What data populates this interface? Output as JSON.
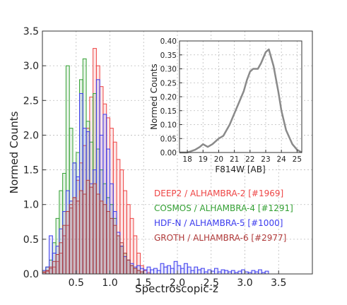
{
  "chart_data": [
    {
      "type": "histogram",
      "xlabel": "Spectroscopic-z",
      "ylabel": "Normed Counts",
      "xlim": [
        0.0,
        4.0
      ],
      "ylim": [
        0.0,
        3.5
      ],
      "xticks": [
        "0.5",
        "1.0",
        "1.5",
        "2.0",
        "2.5",
        "3.0",
        "3.5"
      ],
      "yticks": [
        "0.0",
        "0.5",
        "1.0",
        "1.5",
        "2.0",
        "2.5",
        "3.0",
        "3.5"
      ],
      "grid": true,
      "legend_placement": "lower-right",
      "series": [
        {
          "name": "DEEP2 / ALHAMBRA-2 [#1969]",
          "color": "#ee4444",
          "bins": [
            [
              0.0,
              0.02
            ],
            [
              0.05,
              0.04
            ],
            [
              0.1,
              0.08
            ],
            [
              0.15,
              0.1
            ],
            [
              0.2,
              0.18
            ],
            [
              0.25,
              0.3
            ],
            [
              0.3,
              0.55
            ],
            [
              0.35,
              0.7
            ],
            [
              0.4,
              0.95
            ],
            [
              0.45,
              1.1
            ],
            [
              0.5,
              1.35
            ],
            [
              0.55,
              1.6
            ],
            [
              0.6,
              1.85
            ],
            [
              0.65,
              2.1
            ],
            [
              0.7,
              2.55
            ],
            [
              0.75,
              3.25
            ],
            [
              0.8,
              3.0
            ],
            [
              0.85,
              2.7
            ],
            [
              0.9,
              2.45
            ],
            [
              0.95,
              2.25
            ],
            [
              1.0,
              2.1
            ],
            [
              1.05,
              1.9
            ],
            [
              1.1,
              1.65
            ],
            [
              1.15,
              1.5
            ],
            [
              1.2,
              1.2
            ],
            [
              1.25,
              1.0
            ],
            [
              1.3,
              0.8
            ],
            [
              1.35,
              0.55
            ],
            [
              1.4,
              0.3
            ],
            [
              1.45,
              0.12
            ],
            [
              1.5,
              0.05
            ],
            [
              1.55,
              0.02
            ]
          ]
        },
        {
          "name": "COSMOS / ALHAMBRA-4 [#1291]",
          "color": "#33a033",
          "bins": [
            [
              0.0,
              0.05
            ],
            [
              0.05,
              0.1
            ],
            [
              0.1,
              0.2
            ],
            [
              0.15,
              0.45
            ],
            [
              0.2,
              0.8
            ],
            [
              0.25,
              1.2
            ],
            [
              0.3,
              1.45
            ],
            [
              0.35,
              3.0
            ],
            [
              0.4,
              2.1
            ],
            [
              0.45,
              1.6
            ],
            [
              0.5,
              1.75
            ],
            [
              0.55,
              2.8
            ],
            [
              0.6,
              3.1
            ],
            [
              0.65,
              2.2
            ],
            [
              0.7,
              1.9
            ],
            [
              0.75,
              2.6
            ],
            [
              0.8,
              1.8
            ],
            [
              0.85,
              1.5
            ],
            [
              0.9,
              1.3
            ],
            [
              0.95,
              1.1
            ],
            [
              1.0,
              1.0
            ],
            [
              1.05,
              0.8
            ],
            [
              1.1,
              0.55
            ],
            [
              1.15,
              0.4
            ],
            [
              1.2,
              0.3
            ],
            [
              1.25,
              0.2
            ],
            [
              1.3,
              0.12
            ],
            [
              1.35,
              0.08
            ],
            [
              1.4,
              0.05
            ],
            [
              1.45,
              0.03
            ]
          ]
        },
        {
          "name": "HDF-N / ALHAMBRA-5 [#1000]",
          "color": "#3a3aee",
          "bins": [
            [
              0.0,
              0.05
            ],
            [
              0.05,
              0.1
            ],
            [
              0.1,
              0.55
            ],
            [
              0.15,
              0.3
            ],
            [
              0.2,
              0.4
            ],
            [
              0.25,
              0.65
            ],
            [
              0.3,
              0.9
            ],
            [
              0.35,
              1.2
            ],
            [
              0.4,
              1.05
            ],
            [
              0.45,
              1.6
            ],
            [
              0.5,
              1.4
            ],
            [
              0.55,
              2.6
            ],
            [
              0.6,
              2.1
            ],
            [
              0.65,
              2.05
            ],
            [
              0.7,
              1.3
            ],
            [
              0.75,
              1.5
            ],
            [
              0.8,
              2.8
            ],
            [
              0.85,
              2.0
            ],
            [
              0.9,
              2.3
            ],
            [
              0.95,
              1.8
            ],
            [
              1.0,
              1.3
            ],
            [
              1.05,
              0.9
            ],
            [
              1.1,
              0.6
            ],
            [
              1.15,
              0.4
            ],
            [
              1.2,
              0.25
            ],
            [
              1.25,
              0.2
            ],
            [
              1.3,
              0.15
            ],
            [
              1.35,
              0.1
            ],
            [
              1.4,
              0.12
            ],
            [
              1.45,
              0.08
            ],
            [
              1.5,
              0.06
            ],
            [
              1.55,
              0.1
            ],
            [
              1.6,
              0.06
            ],
            [
              1.65,
              0.08
            ],
            [
              1.7,
              0.05
            ],
            [
              1.75,
              0.15
            ],
            [
              1.8,
              0.1
            ],
            [
              1.85,
              0.12
            ],
            [
              1.9,
              0.08
            ],
            [
              1.95,
              0.18
            ],
            [
              2.0,
              0.12
            ],
            [
              2.05,
              0.08
            ],
            [
              2.1,
              0.15
            ],
            [
              2.15,
              0.1
            ],
            [
              2.2,
              0.05
            ],
            [
              2.25,
              0.1
            ],
            [
              2.3,
              0.06
            ],
            [
              2.35,
              0.08
            ],
            [
              2.4,
              0.03
            ],
            [
              2.45,
              0.06
            ],
            [
              2.5,
              0.04
            ],
            [
              2.55,
              0.08
            ],
            [
              2.6,
              0.03
            ],
            [
              2.65,
              0.06
            ],
            [
              2.7,
              0.05
            ],
            [
              2.75,
              0.03
            ],
            [
              2.8,
              0.05
            ],
            [
              2.85,
              0.02
            ],
            [
              2.9,
              0.04
            ],
            [
              2.95,
              0.06
            ],
            [
              3.0,
              0.03
            ],
            [
              3.05,
              0.02
            ],
            [
              3.1,
              0.05
            ],
            [
              3.15,
              0.03
            ],
            [
              3.2,
              0.06
            ],
            [
              3.25,
              0.02
            ],
            [
              3.3,
              0.04
            ]
          ]
        },
        {
          "name": "GROTH / ALHAMBRA-6 [#2977]",
          "color": "#b03a3a",
          "bins": [
            [
              0.0,
              0.03
            ],
            [
              0.05,
              0.05
            ],
            [
              0.1,
              0.1
            ],
            [
              0.15,
              0.18
            ],
            [
              0.2,
              0.28
            ],
            [
              0.25,
              0.45
            ],
            [
              0.3,
              0.7
            ],
            [
              0.35,
              0.9
            ],
            [
              0.4,
              1.0
            ],
            [
              0.45,
              1.1
            ],
            [
              0.5,
              1.05
            ],
            [
              0.55,
              1.2
            ],
            [
              0.6,
              1.15
            ],
            [
              0.65,
              1.35
            ],
            [
              0.7,
              1.25
            ],
            [
              0.75,
              1.3
            ],
            [
              0.8,
              1.15
            ],
            [
              0.85,
              1.05
            ],
            [
              0.9,
              1.0
            ],
            [
              0.95,
              0.9
            ],
            [
              1.0,
              0.8
            ],
            [
              1.05,
              0.7
            ],
            [
              1.1,
              0.55
            ],
            [
              1.15,
              0.45
            ],
            [
              1.2,
              0.3
            ],
            [
              1.25,
              0.2
            ],
            [
              1.3,
              0.12
            ],
            [
              1.35,
              0.08
            ],
            [
              1.4,
              0.05
            ],
            [
              1.45,
              0.03
            ]
          ]
        }
      ]
    },
    {
      "type": "line",
      "xlabel": "F814W [AB]",
      "ylabel": "Normed Counts",
      "xlim": [
        17.5,
        25.3
      ],
      "ylim": [
        0.0,
        0.4
      ],
      "xticks": [
        "18",
        "19",
        "20",
        "21",
        "22",
        "23",
        "24",
        "25"
      ],
      "yticks": [
        "0.00",
        "0.05",
        "0.10",
        "0.15",
        "0.20",
        "0.25",
        "0.30",
        "0.35",
        "0.40"
      ],
      "grid": true,
      "series": [
        {
          "color": "#8a8a8a",
          "x": [
            17.5,
            18.0,
            18.5,
            18.8,
            19.0,
            19.3,
            19.6,
            20.0,
            20.3,
            20.7,
            21.0,
            21.3,
            21.6,
            21.8,
            22.0,
            22.2,
            22.5,
            22.7,
            23.0,
            23.2,
            23.5,
            23.8,
            24.0,
            24.3,
            24.7,
            25.0,
            25.3
          ],
          "y": [
            0.0,
            0.0,
            0.01,
            0.02,
            0.03,
            0.02,
            0.03,
            0.05,
            0.06,
            0.1,
            0.14,
            0.18,
            0.22,
            0.26,
            0.29,
            0.3,
            0.3,
            0.32,
            0.36,
            0.37,
            0.31,
            0.22,
            0.15,
            0.08,
            0.03,
            0.01,
            0.0
          ]
        }
      ]
    }
  ]
}
